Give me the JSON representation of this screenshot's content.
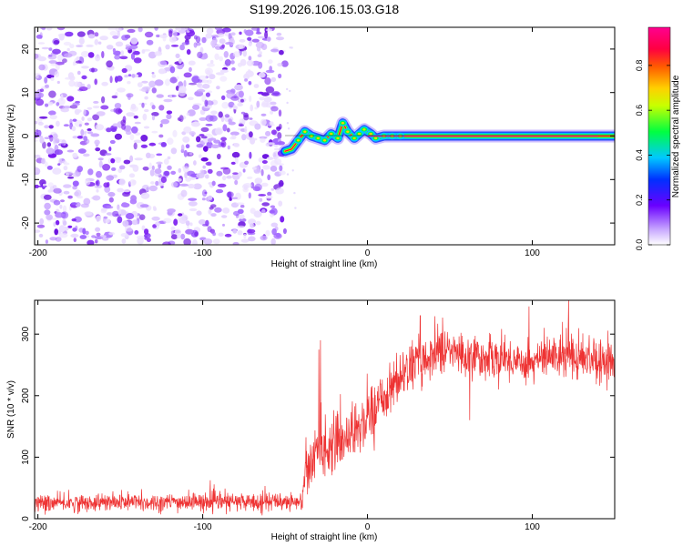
{
  "title": "S199.2026.106.15.03.G18",
  "chart_data": [
    {
      "type": "heatmap",
      "name": "spectrogram",
      "xlabel": "Height of straight line (km)",
      "ylabel": "Frequency (Hz)",
      "xlim": [
        -202,
        150
      ],
      "ylim": [
        -25,
        25
      ],
      "x_ticks": [
        -200,
        -100,
        0,
        100
      ],
      "y_ticks": [
        -20,
        -10,
        0,
        10,
        20
      ],
      "noise_region_x": [
        -202,
        -50
      ],
      "signal_track": [
        {
          "x": -50,
          "y": -3.5
        },
        {
          "x": -46,
          "y": -3
        },
        {
          "x": -42,
          "y": -1
        },
        {
          "x": -38,
          "y": 1
        },
        {
          "x": -34,
          "y": 0
        },
        {
          "x": -30,
          "y": -0.5
        },
        {
          "x": -26,
          "y": -1
        },
        {
          "x": -22,
          "y": 0.5
        },
        {
          "x": -18,
          "y": -0.5
        },
        {
          "x": -15,
          "y": 3
        },
        {
          "x": -12,
          "y": 1
        },
        {
          "x": -8,
          "y": -0.5
        },
        {
          "x": -5,
          "y": 0.5
        },
        {
          "x": -2,
          "y": 1.5
        },
        {
          "x": 2,
          "y": 0.5
        },
        {
          "x": 5,
          "y": -0.5
        },
        {
          "x": 10,
          "y": 0
        },
        {
          "x": 15,
          "y": 0
        },
        {
          "x": 20,
          "y": 0
        },
        {
          "x": 150,
          "y": 0
        }
      ],
      "colorbar": {
        "label": "Normalized spectral amplitude",
        "ticks": [
          0.0,
          0.2,
          0.4,
          0.6,
          0.8
        ],
        "range": [
          0.0,
          0.97
        ]
      }
    },
    {
      "type": "line",
      "name": "snr",
      "xlabel": "Height of straight line (km)",
      "ylabel": "SNR (10 * v/v)",
      "xlim": [
        -202,
        150
      ],
      "ylim": [
        0,
        355
      ],
      "x_ticks": [
        -200,
        -100,
        0,
        100
      ],
      "y_ticks": [
        0,
        100,
        200,
        300
      ],
      "color": "#ee3333",
      "envelope": [
        {
          "x": -202,
          "mean": 25,
          "spread": 14
        },
        {
          "x": -100,
          "mean": 27,
          "spread": 15
        },
        {
          "x": -40,
          "mean": 28,
          "spread": 15
        },
        {
          "x": -38,
          "mean": 70,
          "spread": 40
        },
        {
          "x": -30,
          "mean": 110,
          "spread": 45
        },
        {
          "x": -15,
          "mean": 130,
          "spread": 45
        },
        {
          "x": 0,
          "mean": 160,
          "spread": 45
        },
        {
          "x": 10,
          "mean": 200,
          "spread": 40
        },
        {
          "x": 25,
          "mean": 245,
          "spread": 40
        },
        {
          "x": 45,
          "mean": 275,
          "spread": 35
        },
        {
          "x": 60,
          "mean": 265,
          "spread": 35
        },
        {
          "x": 80,
          "mean": 260,
          "spread": 35
        },
        {
          "x": 100,
          "mean": 255,
          "spread": 35
        },
        {
          "x": 120,
          "mean": 270,
          "spread": 40
        },
        {
          "x": 150,
          "mean": 255,
          "spread": 35
        }
      ],
      "spikes": [
        {
          "x": -28.5,
          "y": 290
        },
        {
          "x": -29.5,
          "y": 275
        },
        {
          "x": 32,
          "y": 330
        },
        {
          "x": 98,
          "y": 345
        },
        {
          "x": 122,
          "y": 355
        },
        {
          "x": 62,
          "y": 160
        }
      ]
    }
  ]
}
